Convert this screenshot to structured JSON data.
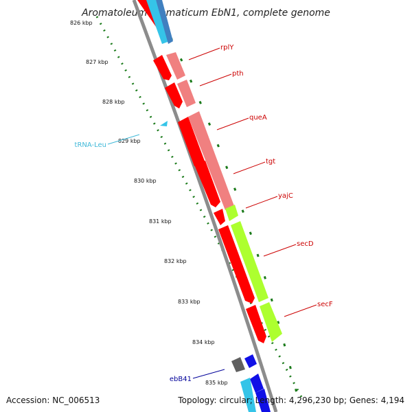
{
  "title": "Aromatoleum aromaticum EbN1, complete genome",
  "footer": {
    "accession": "Accession: NC_006513",
    "summary": "Topology: circular; Length: 4,296,230 bp; Genes: 4,194"
  },
  "kbp_ticks": [
    "826 kbp",
    "827 kbp",
    "828 kbp",
    "829 kbp",
    "830 kbp",
    "831 kbp",
    "832 kbp",
    "833 kbp",
    "834 kbp",
    "835 kbp"
  ],
  "gene_labels": [
    "rplY",
    "pth",
    "queA",
    "tgt",
    "yajC",
    "secD",
    "secF",
    "tRNA-Leu",
    "ebB41"
  ],
  "colors": {
    "backbone": "#8c8c8c",
    "cds": "#ff0000",
    "cds_light": "#f08080",
    "cog_green": "#adff2f",
    "trna": "#35c4e8",
    "blue_gene": "#1010e6",
    "dark_gene": "#606060",
    "tick_green": "#1a7a1a",
    "label_red": "#cc0000",
    "label_cyan": "#3fb8d8",
    "label_blue": "#000099"
  }
}
